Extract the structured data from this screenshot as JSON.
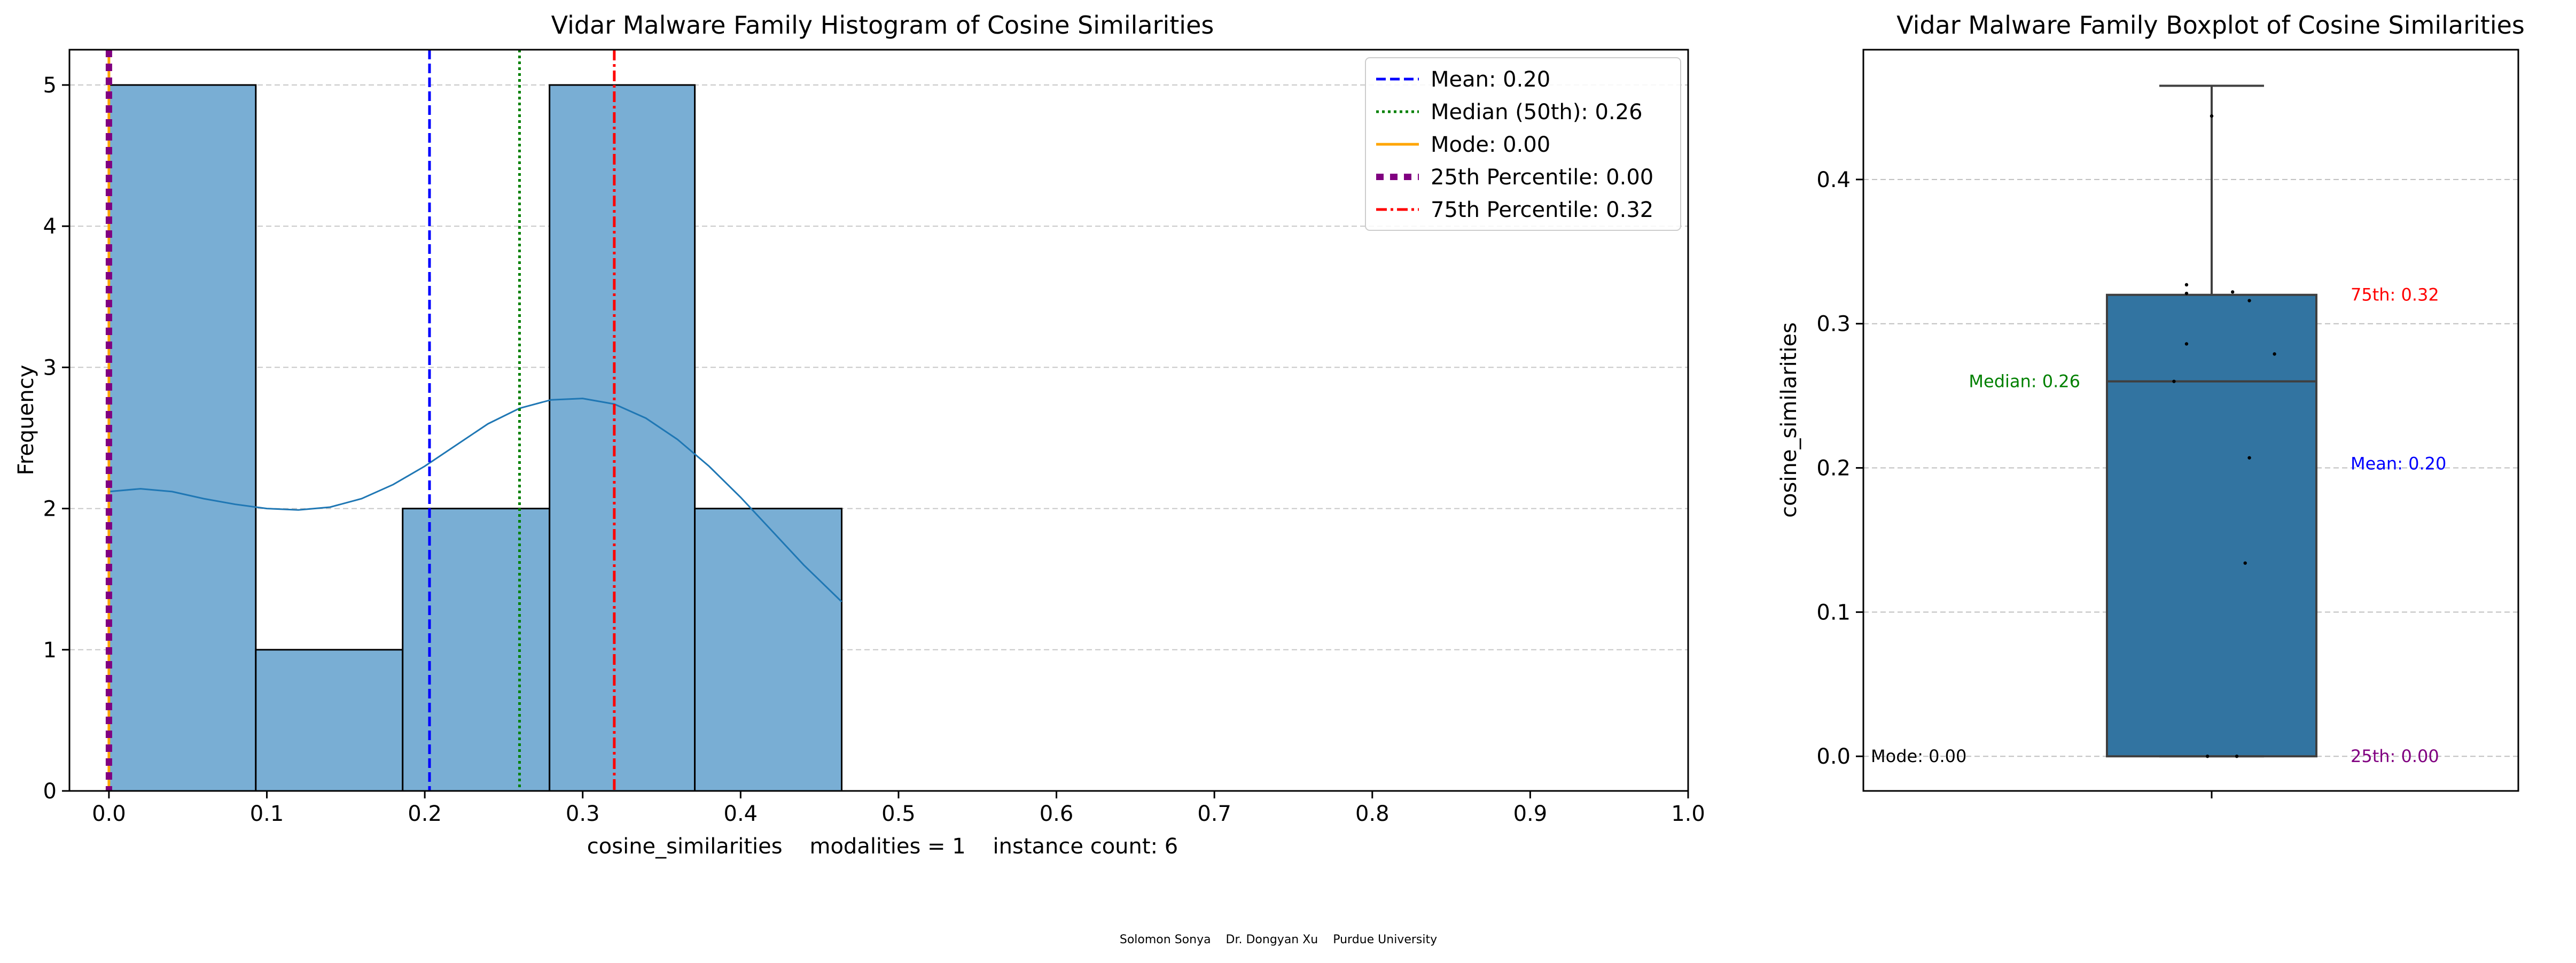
{
  "footer": {
    "text": "Solomon Sonya    Dr. Dongyan Xu    Purdue University"
  },
  "chart_data": [
    {
      "type": "bar",
      "title": "Vidar Malware Family Histogram of Cosine Similarities",
      "xlabel": "cosine_similarities    modalities = 1    instance count: 6",
      "ylabel": "Frequency",
      "xlim": [
        -0.025,
        1.0
      ],
      "ylim": [
        0,
        5.25
      ],
      "xticks": [
        "0.0",
        "0.1",
        "0.2",
        "0.3",
        "0.4",
        "0.5",
        "0.6",
        "0.7",
        "0.8",
        "0.9",
        "1.0"
      ],
      "yticks": [
        "0",
        "1",
        "2",
        "3",
        "4",
        "5"
      ],
      "grid": "y-dashed",
      "bins": [
        {
          "start": 0.0,
          "end": 0.093,
          "value": 5
        },
        {
          "start": 0.093,
          "end": 0.186,
          "value": 1
        },
        {
          "start": 0.186,
          "end": 0.279,
          "value": 2
        },
        {
          "start": 0.279,
          "end": 0.371,
          "value": 5
        },
        {
          "start": 0.371,
          "end": 0.464,
          "value": 2
        }
      ],
      "bar_color": "#79aed4",
      "kde": {
        "color": "#1f77b4",
        "x": [
          0.0,
          0.02,
          0.04,
          0.06,
          0.08,
          0.1,
          0.12,
          0.14,
          0.16,
          0.18,
          0.2,
          0.22,
          0.24,
          0.26,
          0.28,
          0.3,
          0.32,
          0.34,
          0.36,
          0.38,
          0.4,
          0.42,
          0.44,
          0.464
        ],
        "y": [
          2.12,
          2.14,
          2.12,
          2.07,
          2.03,
          2.0,
          1.99,
          2.01,
          2.07,
          2.17,
          2.3,
          2.45,
          2.6,
          2.71,
          2.77,
          2.78,
          2.74,
          2.64,
          2.49,
          2.3,
          2.08,
          1.84,
          1.6,
          1.34
        ]
      },
      "reference_lines": [
        {
          "label": "Mean: 0.20",
          "x": 0.203,
          "color": "#0000ff",
          "style": "dashed"
        },
        {
          "label": "Median (50th): 0.26",
          "x": 0.26,
          "color": "#008000",
          "style": "dotted"
        },
        {
          "label": "Mode: 0.00",
          "x": 0.0,
          "color": "#ffa500",
          "style": "solid"
        },
        {
          "label": "25th Percentile: 0.00",
          "x": 0.0,
          "color": "#800080",
          "style": "thick-dashed"
        },
        {
          "label": "75th Percentile: 0.32",
          "x": 0.32,
          "color": "#ff0000",
          "style": "dashdot"
        }
      ],
      "legend": "top-right"
    },
    {
      "type": "box",
      "title": "Vidar Malware Family Boxplot of Cosine Similarities",
      "ylabel": "cosine_similarities",
      "ylim": [
        -0.024,
        0.49
      ],
      "yticks": [
        "0.0",
        "0.1",
        "0.2",
        "0.3",
        "0.4"
      ],
      "grid": "y-dashed",
      "box": {
        "q1": 0.0,
        "median": 0.26,
        "q3": 0.32,
        "whisker_low": 0.0,
        "whisker_high": 0.465,
        "color": "#3274a1"
      },
      "points": [
        {
          "x": 0.0,
          "y": 0.444
        },
        {
          "x": -0.12,
          "y": 0.327
        },
        {
          "x": -0.12,
          "y": 0.321
        },
        {
          "x": 0.1,
          "y": 0.322
        },
        {
          "x": 0.18,
          "y": 0.316
        },
        {
          "x": -0.12,
          "y": 0.286
        },
        {
          "x": 0.3,
          "y": 0.279
        },
        {
          "x": -0.18,
          "y": 0.26
        },
        {
          "x": 0.18,
          "y": 0.207
        },
        {
          "x": 0.16,
          "y": 0.134
        },
        {
          "x": -0.02,
          "y": 0.0
        },
        {
          "x": 0.12,
          "y": 0.0
        }
      ],
      "annotations": [
        {
          "text": "75th: 0.32",
          "y": 0.32,
          "color": "#ff0000",
          "side": "right"
        },
        {
          "text": "Median: 0.26",
          "y": 0.26,
          "color": "#008000",
          "side": "left"
        },
        {
          "text": "Mean: 0.20",
          "y": 0.203,
          "color": "#0000ff",
          "side": "right"
        },
        {
          "text": "Mode: 0.00",
          "y": 0.0,
          "color": "#000000",
          "side": "far-left"
        },
        {
          "text": "25th: 0.00",
          "y": 0.0,
          "color": "#800080",
          "side": "right"
        }
      ]
    }
  ]
}
